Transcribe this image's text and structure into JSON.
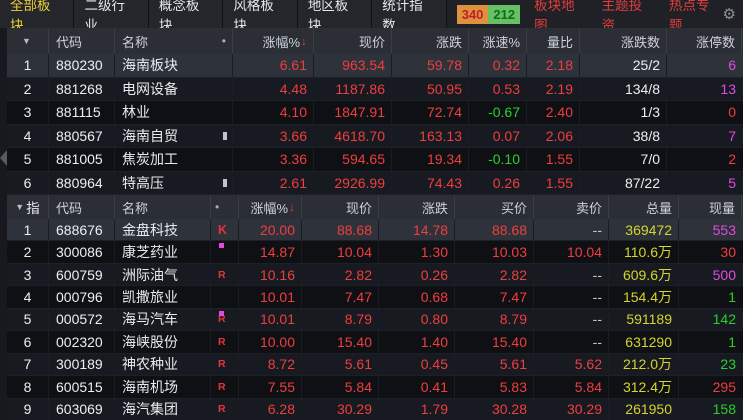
{
  "nav": {
    "tabs": [
      {
        "label": "全部板块",
        "active": true
      },
      {
        "label": "二级行业",
        "active": false
      },
      {
        "label": "概念板块",
        "active": false
      },
      {
        "label": "风格板块",
        "active": false
      },
      {
        "label": "地区板块",
        "active": false
      },
      {
        "label": "统计指数",
        "active": false
      }
    ],
    "counts": {
      "up": "340",
      "down": "212"
    },
    "links": [
      "板块地图",
      "主题投资",
      "热点专题"
    ]
  },
  "icons": {
    "sort_triangle": "▼",
    "name_dot": "•",
    "sort_desc_arrow": "↓",
    "gear": "⚙"
  },
  "colors": {
    "up_red": "#ef3e3e",
    "down_green": "#2bd02b",
    "volume_yellow": "#d5d52c",
    "limit_magenta": "#e24ae2",
    "active_tab_yellow": "#e9cf35",
    "link_red": "#e23d3d",
    "badge_up_bg": "#df923d",
    "badge_down_bg": "#67c164",
    "selected_row_bg": "#2e323b"
  },
  "table1": {
    "columns": [
      "代码",
      "名称",
      "涨幅%",
      "现价",
      "涨跌",
      "涨速%",
      "量比",
      "涨跌数",
      "涨停数"
    ],
    "rows": [
      {
        "seq": "1",
        "code": "880230",
        "name": "海南板块",
        "marker": false,
        "selected": true,
        "values": [
          [
            "6.61",
            "r"
          ],
          [
            "963.54",
            "r"
          ],
          [
            "59.78",
            "r"
          ],
          [
            "0.32",
            "r"
          ],
          [
            "2.18",
            "r"
          ],
          [
            "25/2",
            "w"
          ],
          [
            "6",
            "m"
          ]
        ]
      },
      {
        "seq": "2",
        "code": "881268",
        "name": "电网设备",
        "marker": false,
        "selected": false,
        "values": [
          [
            "4.48",
            "r"
          ],
          [
            "1187.86",
            "r"
          ],
          [
            "50.95",
            "r"
          ],
          [
            "0.53",
            "r"
          ],
          [
            "2.19",
            "r"
          ],
          [
            "134/8",
            "w"
          ],
          [
            "13",
            "m"
          ]
        ]
      },
      {
        "seq": "3",
        "code": "881115",
        "name": "林业",
        "marker": false,
        "selected": false,
        "values": [
          [
            "4.10",
            "r"
          ],
          [
            "1847.91",
            "r"
          ],
          [
            "72.74",
            "r"
          ],
          [
            "-0.67",
            "g"
          ],
          [
            "2.40",
            "r"
          ],
          [
            "1/3",
            "w"
          ],
          [
            "0",
            "r"
          ]
        ]
      },
      {
        "seq": "4",
        "code": "880567",
        "name": "海南自贸",
        "marker": true,
        "selected": false,
        "values": [
          [
            "3.66",
            "r"
          ],
          [
            "4618.70",
            "r"
          ],
          [
            "163.13",
            "r"
          ],
          [
            "0.07",
            "r"
          ],
          [
            "2.06",
            "r"
          ],
          [
            "38/8",
            "w"
          ],
          [
            "7",
            "m"
          ]
        ]
      },
      {
        "seq": "5",
        "code": "881005",
        "name": "焦炭加工",
        "marker": false,
        "selected": false,
        "values": [
          [
            "3.36",
            "r"
          ],
          [
            "594.65",
            "r"
          ],
          [
            "19.34",
            "r"
          ],
          [
            "-0.10",
            "g"
          ],
          [
            "1.55",
            "r"
          ],
          [
            "7/0",
            "w"
          ],
          [
            "2",
            "r"
          ]
        ]
      },
      {
        "seq": "6",
        "code": "880964",
        "name": "特高压",
        "marker": true,
        "selected": false,
        "values": [
          [
            "2.61",
            "r"
          ],
          [
            "2926.99",
            "r"
          ],
          [
            "74.43",
            "r"
          ],
          [
            "0.26",
            "r"
          ],
          [
            "1.55",
            "r"
          ],
          [
            "87/22",
            "w"
          ],
          [
            "5",
            "m"
          ]
        ]
      }
    ]
  },
  "table2": {
    "group_label": "指",
    "columns": [
      "代码",
      "名称",
      "涨幅%",
      "现价",
      "涨跌",
      "买价",
      "卖价",
      "总量",
      "现量"
    ],
    "rows": [
      {
        "seq": "1",
        "code": "688676",
        "name": "金盘科技",
        "tag": "K",
        "dot": false,
        "selected": true,
        "values": [
          [
            "20.00",
            "r"
          ],
          [
            "88.68",
            "r"
          ],
          [
            "14.78",
            "r"
          ],
          [
            "88.68",
            "r"
          ],
          [
            "--",
            "gy"
          ],
          [
            "369472",
            "y"
          ],
          [
            "553",
            "m"
          ]
        ]
      },
      {
        "seq": "2",
        "code": "300086",
        "name": "康芝药业",
        "tag": "",
        "dot": true,
        "selected": false,
        "values": [
          [
            "14.87",
            "r"
          ],
          [
            "10.04",
            "r"
          ],
          [
            "1.30",
            "r"
          ],
          [
            "10.03",
            "r"
          ],
          [
            "10.04",
            "r"
          ],
          [
            "110.6万",
            "y"
          ],
          [
            "30",
            "r"
          ]
        ]
      },
      {
        "seq": "3",
        "code": "600759",
        "name": "洲际油气",
        "tag": "R",
        "dot": false,
        "selected": false,
        "values": [
          [
            "10.16",
            "r"
          ],
          [
            "2.82",
            "r"
          ],
          [
            "0.26",
            "r"
          ],
          [
            "2.82",
            "r"
          ],
          [
            "--",
            "gy"
          ],
          [
            "609.6万",
            "y"
          ],
          [
            "500",
            "m"
          ]
        ]
      },
      {
        "seq": "4",
        "code": "000796",
        "name": "凯撒旅业",
        "tag": "",
        "dot": false,
        "selected": false,
        "values": [
          [
            "10.01",
            "r"
          ],
          [
            "7.47",
            "r"
          ],
          [
            "0.68",
            "r"
          ],
          [
            "7.47",
            "r"
          ],
          [
            "--",
            "gy"
          ],
          [
            "154.4万",
            "y"
          ],
          [
            "1",
            "g"
          ]
        ]
      },
      {
        "seq": "5",
        "code": "000572",
        "name": "海马汽车",
        "tag": "R",
        "dot": true,
        "selected": false,
        "values": [
          [
            "10.01",
            "r"
          ],
          [
            "8.79",
            "r"
          ],
          [
            "0.80",
            "r"
          ],
          [
            "8.79",
            "r"
          ],
          [
            "--",
            "gy"
          ],
          [
            "591189",
            "y"
          ],
          [
            "142",
            "g"
          ]
        ]
      },
      {
        "seq": "6",
        "code": "002320",
        "name": "海峡股份",
        "tag": "R",
        "dot": false,
        "selected": false,
        "values": [
          [
            "10.00",
            "r"
          ],
          [
            "15.40",
            "r"
          ],
          [
            "1.40",
            "r"
          ],
          [
            "15.40",
            "r"
          ],
          [
            "--",
            "gy"
          ],
          [
            "631290",
            "y"
          ],
          [
            "1",
            "g"
          ]
        ]
      },
      {
        "seq": "7",
        "code": "300189",
        "name": "神农种业",
        "tag": "R",
        "dot": false,
        "selected": false,
        "values": [
          [
            "8.72",
            "r"
          ],
          [
            "5.61",
            "r"
          ],
          [
            "0.45",
            "r"
          ],
          [
            "5.61",
            "r"
          ],
          [
            "5.62",
            "r"
          ],
          [
            "212.0万",
            "y"
          ],
          [
            "23",
            "g"
          ]
        ]
      },
      {
        "seq": "8",
        "code": "600515",
        "name": "海南机场",
        "tag": "R",
        "dot": false,
        "selected": false,
        "values": [
          [
            "7.55",
            "r"
          ],
          [
            "5.84",
            "r"
          ],
          [
            "0.41",
            "r"
          ],
          [
            "5.83",
            "r"
          ],
          [
            "5.84",
            "r"
          ],
          [
            "312.4万",
            "y"
          ],
          [
            "295",
            "r"
          ]
        ]
      },
      {
        "seq": "9",
        "code": "603069",
        "name": "海汽集团",
        "tag": "R",
        "dot": false,
        "selected": false,
        "values": [
          [
            "6.28",
            "r"
          ],
          [
            "30.29",
            "r"
          ],
          [
            "1.79",
            "r"
          ],
          [
            "30.28",
            "r"
          ],
          [
            "30.29",
            "r"
          ],
          [
            "261950",
            "y"
          ],
          [
            "158",
            "g"
          ]
        ]
      }
    ]
  }
}
